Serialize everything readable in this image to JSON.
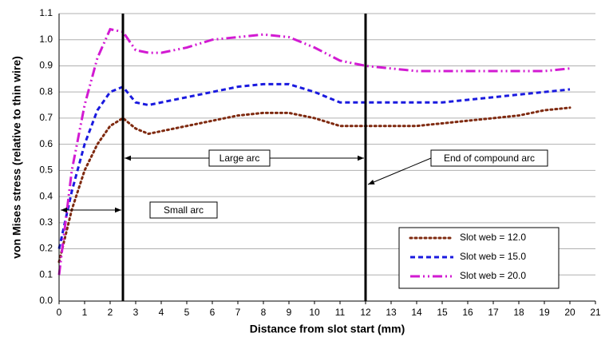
{
  "chart_data": {
    "type": "line",
    "x_label": "Distance from slot start (mm)",
    "y_label": "von Mises stress (relative to thin wire)",
    "x": [
      0,
      0.5,
      1,
      1.5,
      2,
      2.5,
      3,
      3.5,
      4,
      5,
      6,
      7,
      8,
      9,
      10,
      11,
      12,
      13,
      14,
      15,
      16,
      17,
      18,
      19,
      20
    ],
    "series": [
      {
        "name": "Slot web = 12.0",
        "color": "#7f2a10",
        "dash": "dotted",
        "values": [
          0.15,
          0.35,
          0.5,
          0.6,
          0.67,
          0.7,
          0.66,
          0.64,
          0.65,
          0.67,
          0.69,
          0.71,
          0.72,
          0.72,
          0.7,
          0.67,
          0.67,
          0.67,
          0.67,
          0.68,
          0.69,
          0.7,
          0.71,
          0.73,
          0.74
        ]
      },
      {
        "name": "Slot web = 15.0",
        "color": "#1a1adf",
        "dash": "dashed",
        "values": [
          0.2,
          0.42,
          0.6,
          0.73,
          0.8,
          0.82,
          0.76,
          0.75,
          0.76,
          0.78,
          0.8,
          0.82,
          0.83,
          0.83,
          0.8,
          0.76,
          0.76,
          0.76,
          0.76,
          0.76,
          0.77,
          0.78,
          0.79,
          0.8,
          0.81
        ]
      },
      {
        "name": "Slot web = 20.0",
        "color": "#d21ad2",
        "dash": "dash-dot-dot",
        "values": [
          0.1,
          0.5,
          0.75,
          0.93,
          1.04,
          1.03,
          0.96,
          0.95,
          0.95,
          0.97,
          1.0,
          1.01,
          1.02,
          1.01,
          0.97,
          0.92,
          0.9,
          0.89,
          0.88,
          0.88,
          0.88,
          0.88,
          0.88,
          0.88,
          0.89
        ]
      }
    ],
    "vertical_lines": [
      2.5,
      12
    ],
    "annotations": [
      "Large arc",
      "End of compound arc",
      "Small arc"
    ],
    "xlim": [
      0,
      21
    ],
    "xticks": [
      0,
      1,
      2,
      3,
      4,
      5,
      6,
      7,
      8,
      9,
      10,
      11,
      12,
      13,
      14,
      15,
      16,
      17,
      18,
      19,
      20,
      21
    ],
    "ylim": [
      0,
      1.1
    ],
    "yticks": [
      {
        "value": 0,
        "label": "0.0"
      },
      0.1,
      0.2,
      0.3,
      0.4,
      0.5,
      0.6,
      0.7,
      0.8,
      0.9,
      {
        "value": 1,
        "label": "1.0"
      },
      1.1
    ],
    "grid": true,
    "legend": "lower-right"
  }
}
